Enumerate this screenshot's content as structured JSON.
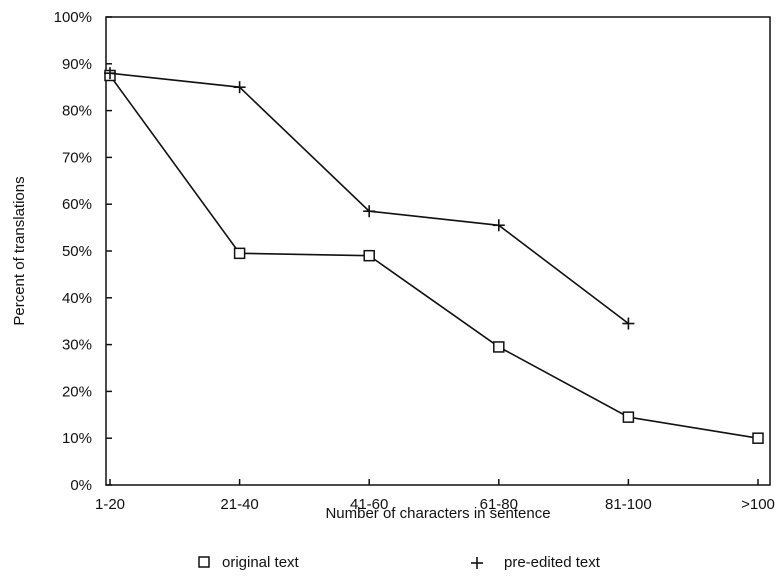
{
  "chart_data": {
    "type": "line",
    "categories": [
      "1-20",
      "21-40",
      "41-60",
      "61-80",
      "81-100",
      ">100"
    ],
    "series": [
      {
        "name": "original text",
        "marker": "square",
        "values": [
          87.5,
          49.5,
          49,
          29.5,
          14.5,
          10
        ]
      },
      {
        "name": "pre-edited text",
        "marker": "plus",
        "values": [
          88,
          85,
          58.5,
          55.5,
          34.5,
          null
        ]
      }
    ],
    "xlabel": "Number of characters in sentence",
    "ylabel": "Percent of translations",
    "ylim": [
      0,
      100
    ],
    "yticks": [
      0,
      10,
      20,
      30,
      40,
      50,
      60,
      70,
      80,
      90,
      100
    ],
    "ytick_labels": [
      "0%",
      "10%",
      "20%",
      "30%",
      "40%",
      "50%",
      "60%",
      "70%",
      "80%",
      "90%",
      "100%"
    ],
    "grid": false,
    "legend_placement": "bottom",
    "colors": {
      "line": "#111111",
      "background": "#ffffff"
    }
  }
}
